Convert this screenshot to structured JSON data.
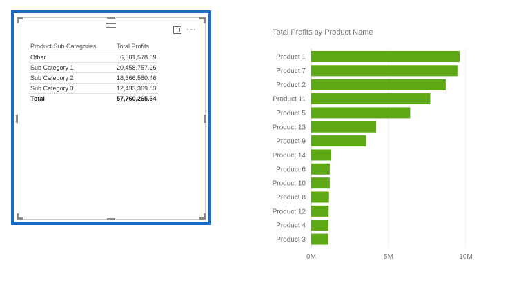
{
  "table": {
    "headers": [
      "Product Sub Categories",
      "Total Profits"
    ],
    "rows": [
      {
        "category": "Other",
        "profit": "6,501,578.09"
      },
      {
        "category": "Sub Category 1",
        "profit": "20,458,757.26"
      },
      {
        "category": "Sub Category 2",
        "profit": "18,366,560.46"
      },
      {
        "category": "Sub Category 3",
        "profit": "12,433,369.83"
      }
    ],
    "total": {
      "label": "Total",
      "profit": "57,760,265.64"
    }
  },
  "icons": {
    "drag": "drag-handle-icon",
    "focus": "focus-mode-icon",
    "more": "more-options-icon"
  },
  "colors": {
    "selection_border": "#1a6bc6",
    "bar": "#5ea816"
  },
  "chart_data": {
    "type": "bar",
    "orientation": "horizontal",
    "title": "Total Profits by Product Name",
    "categories": [
      "Product 1",
      "Product 7",
      "Product 2",
      "Product 11",
      "Product 5",
      "Product 13",
      "Product 9",
      "Product 14",
      "Product 6",
      "Product 10",
      "Product 8",
      "Product 12",
      "Product 4",
      "Product 3"
    ],
    "values": [
      9600000,
      9500000,
      8700000,
      7700000,
      6400000,
      4200000,
      3550000,
      1300000,
      1200000,
      1200000,
      1150000,
      1130000,
      1120000,
      1110000
    ],
    "xlim": [
      0,
      10000000
    ],
    "xticks": [
      "0M",
      "5M",
      "10M"
    ],
    "xtick_values": [
      0,
      5000000,
      10000000
    ],
    "grid": true
  }
}
